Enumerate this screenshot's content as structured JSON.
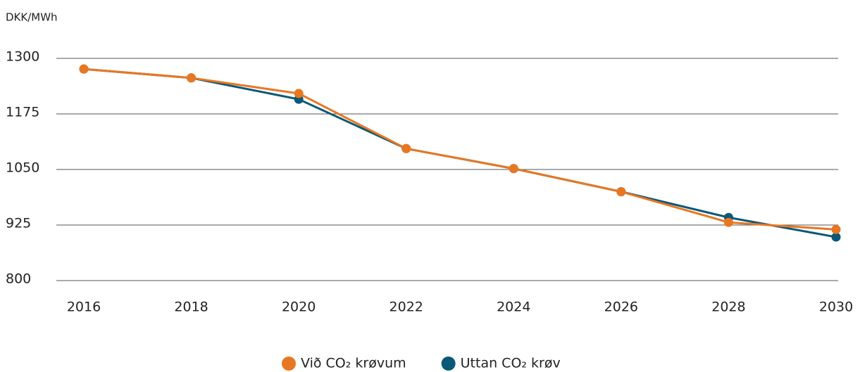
{
  "chart_data": {
    "type": "line",
    "y_label": "DKK/MWh",
    "x": [
      2016,
      2018,
      2020,
      2022,
      2024,
      2026,
      2028,
      2030
    ],
    "xlim": [
      2016,
      2030
    ],
    "xticks": [
      2016,
      2018,
      2020,
      2022,
      2024,
      2026,
      2028,
      2030
    ],
    "ylim": [
      800,
      1300
    ],
    "yticks": [
      800,
      925,
      1050,
      1175,
      1300
    ],
    "grid": true,
    "legend": "bottom",
    "series": [
      {
        "name": "Við CO₂ krøvum",
        "color": "#e87722",
        "values": [
          1276,
          1256,
          1221,
          1097,
          1052,
          1000,
          931,
          915
        ]
      },
      {
        "name": "Uttan CO₂ krøv",
        "color": "#0b5877",
        "values": [
          1276,
          1256,
          1208,
          1097,
          1052,
          1000,
          942,
          898
        ]
      }
    ]
  }
}
